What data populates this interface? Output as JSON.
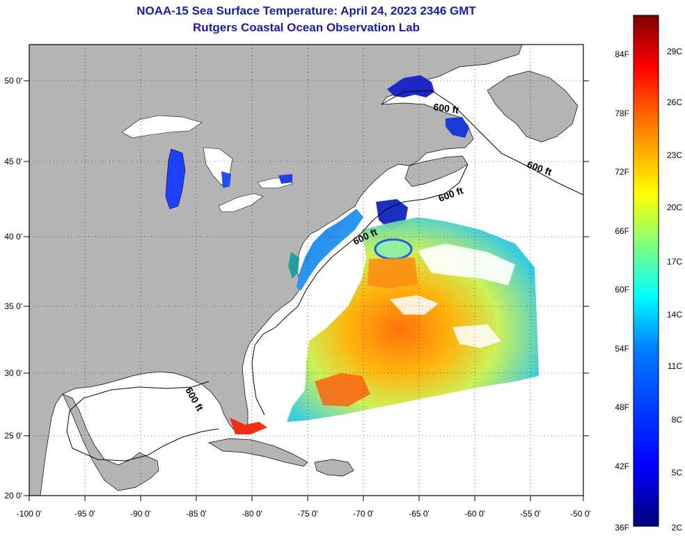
{
  "title": {
    "line1": "NOAA-15 Sea Surface Temperature:  April 24, 2023 2346 GMT",
    "line2": "Rutgers Coastal Ocean Observation Lab"
  },
  "map": {
    "lon_labels": [
      "-100 0'",
      "-95 0'",
      "-90 0'",
      "-85 0'",
      "-80 0'",
      "-75 0'",
      "-70 0'",
      "-65 0'",
      "-60 0'",
      "-55 0'",
      "-50 0'"
    ],
    "lat_labels": [
      "50 0'",
      "45 0'",
      "40 0'",
      "35 0'",
      "30 0'",
      "25 0'",
      "20 0'"
    ],
    "depth_contour_label": "600 ft",
    "land_color": "#b4b4b4",
    "water_color": "#ffffff"
  },
  "colorbar": {
    "fahrenheit_labels": [
      "84F",
      "78F",
      "72F",
      "66F",
      "60F",
      "54F",
      "48F",
      "42F",
      "36F"
    ],
    "celsius_labels": [
      "29C",
      "26C",
      "23C",
      "20C",
      "17C",
      "14C",
      "11C",
      "8C",
      "5C",
      "2C"
    ],
    "colors": [
      "#00007f",
      "#0000ff",
      "#007fff",
      "#00ffff",
      "#7fff7f",
      "#ffff00",
      "#ff7f00",
      "#ff0000",
      "#7f0000"
    ]
  }
}
